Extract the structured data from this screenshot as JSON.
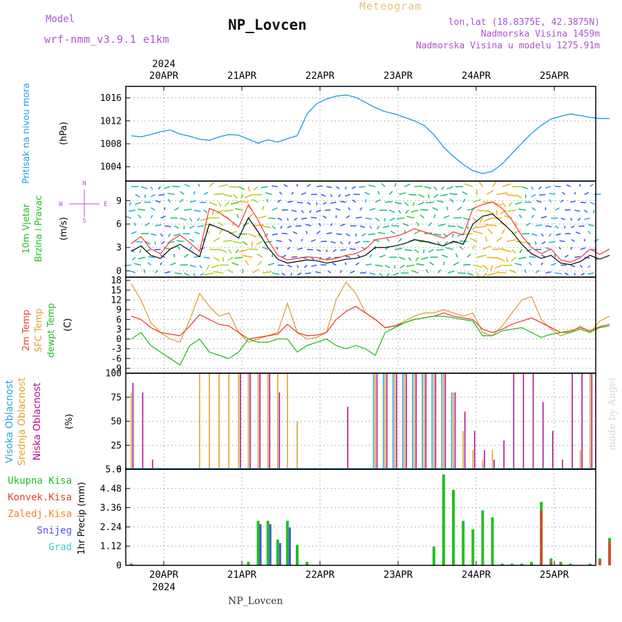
{
  "header": {
    "model_label": "Model",
    "model_name": "wrf-nmm_v3.9.1 e1km",
    "title": "NP_Lovcen",
    "meteogram": "Meteogram",
    "lonlat": "lon,lat (18.8375E, 42.3875N)",
    "elevation": "Nadmorska Visina 1459m",
    "elevation_model": "Nadmorska Visina u modelu 1275.91m",
    "footer": "NP_Lovcen",
    "credit": "made by Angel"
  },
  "colors": {
    "pressure": "#1ea0e6",
    "wind_speed": "#000000",
    "gust": "#ff3030",
    "t2m": "#e84030",
    "sfc": "#e0a030",
    "dew": "#20c020",
    "high_cloud": "#30a0e0",
    "mid_cloud": "#e0a030",
    "low_cloud": "#b01090",
    "total_precip": "#20c020",
    "conv_precip": "#e84030",
    "frz_precip": "#ff8020",
    "snow": "#5050e0",
    "grad": "#30d0d0"
  },
  "chart_data": [
    {
      "type": "line",
      "panel": "pressure",
      "ylabel": [
        "Pritisak na nivou mora",
        "(hPa)"
      ],
      "yticks": [
        1004,
        1008,
        1012,
        1016
      ],
      "ylim": [
        1001.5,
        1018
      ],
      "x_start": "2024-04-19 14:00",
      "x_step_hours": 3,
      "series": [
        {
          "values": [
            1009.4,
            1009.2,
            1009.6,
            1010.1,
            1010.4,
            1009.7,
            1009.3,
            1008.8,
            1008.6,
            1009.2,
            1009.6,
            1009.5,
            1008.8,
            1008.1,
            1008.7,
            1008.3,
            1008.9,
            1009.4,
            1013.2,
            1015.0,
            1015.8,
            1016.3,
            1016.5,
            1016.1,
            1015.2,
            1014.3,
            1013.6,
            1013.2,
            1012.6,
            1012.0,
            1011.2,
            1009.6,
            1007.4,
            1005.8,
            1004.4,
            1003.3,
            1002.8,
            1003.2,
            1004.5,
            1006.3,
            1008.1,
            1009.8,
            1011.2,
            1012.3,
            1012.8,
            1013.2,
            1012.9,
            1012.6,
            1012.4,
            1012.4
          ]
        }
      ]
    },
    {
      "type": "line",
      "panel": "wind",
      "ylabel": [
        "10m Vjetar",
        "Brzina i Pravac",
        "(m/s)"
      ],
      "compass": {
        "n": "N",
        "s": "S",
        "e": "E",
        "w": "W"
      },
      "yticks": [
        0,
        3,
        6,
        9
      ],
      "ylim": [
        -0.8,
        11.5
      ],
      "x_start": "2024-04-19 14:00",
      "x_step_hours": 3,
      "series": [
        {
          "name": "speed",
          "values": [
            2.5,
            3.2,
            2.0,
            1.6,
            2.8,
            3.4,
            2.6,
            1.8,
            6.0,
            5.5,
            5.0,
            4.2,
            6.8,
            5.0,
            3.0,
            1.5,
            1.0,
            1.2,
            1.4,
            1.3,
            1.0,
            1.2,
            1.5,
            1.6,
            2.0,
            3.0,
            3.0,
            3.2,
            3.5,
            4.0,
            3.8,
            3.5,
            3.2,
            3.8,
            3.4,
            6.0,
            7.0,
            7.3,
            6.2,
            5.0,
            3.4,
            2.2,
            1.6,
            2.0,
            1.0,
            0.8,
            1.2,
            2.0,
            1.5,
            2.0
          ]
        },
        {
          "name": "gust",
          "values": [
            3.5,
            4.4,
            2.8,
            2.2,
            3.8,
            4.6,
            3.6,
            2.5,
            8.0,
            7.5,
            6.6,
            5.6,
            8.5,
            6.5,
            4.0,
            2.0,
            1.4,
            1.6,
            1.8,
            1.7,
            1.4,
            1.6,
            2.0,
            2.2,
            2.8,
            4.0,
            4.2,
            4.4,
            4.8,
            5.4,
            5.0,
            4.6,
            4.2,
            5.0,
            4.6,
            8.0,
            8.5,
            8.8,
            8.0,
            6.5,
            4.5,
            3.0,
            2.2,
            2.8,
            1.4,
            1.1,
            1.7,
            2.8,
            2.1,
            2.8
          ]
        }
      ]
    },
    {
      "type": "line",
      "panel": "temperature",
      "ylabel": [
        "2m Temp",
        "SFC Temp",
        "dewpt Temp",
        "(C)"
      ],
      "yticks": [
        -9,
        -6,
        -3,
        0,
        3,
        6,
        9,
        12,
        15,
        18
      ],
      "ylim": [
        -10.5,
        19
      ],
      "x_start": "2024-04-19 14:00",
      "x_step_hours": 3,
      "series": [
        {
          "name": "2m Temp",
          "values": [
            7.0,
            6.0,
            3.5,
            2.0,
            1.5,
            1.0,
            4.0,
            7.5,
            6.0,
            4.5,
            4.0,
            2.0,
            0.0,
            0.5,
            1.0,
            1.5,
            4.5,
            2.0,
            1.0,
            1.2,
            2.0,
            6.0,
            8.5,
            10.0,
            8.0,
            6.0,
            3.5,
            4.0,
            5.0,
            6.0,
            6.5,
            7.0,
            8.0,
            7.0,
            6.5,
            6.0,
            3.0,
            2.0,
            3.0,
            4.5,
            5.5,
            6.5,
            5.0,
            3.5,
            2.0,
            2.5,
            3.5,
            2.5,
            3.8,
            4.5
          ]
        },
        {
          "name": "SFC Temp",
          "values": [
            17.0,
            12.0,
            5.0,
            2.0,
            0.0,
            -1.0,
            6.0,
            14.0,
            10.0,
            7.0,
            8.0,
            2.0,
            -1.0,
            0.0,
            1.0,
            2.0,
            11.0,
            2.0,
            0.0,
            0.5,
            2.0,
            12.0,
            17.5,
            14.0,
            8.0,
            6.0,
            3.5,
            4.0,
            5.5,
            7.0,
            8.0,
            8.0,
            9.0,
            8.0,
            7.0,
            8.0,
            2.0,
            1.0,
            4.0,
            8.0,
            12.0,
            13.0,
            6.0,
            3.0,
            1.0,
            2.0,
            4.0,
            2.0,
            5.5,
            7.0
          ]
        },
        {
          "name": "dewpt Temp",
          "values": [
            0.0,
            2.0,
            -2.0,
            -4.0,
            -6.0,
            -8.0,
            -2.0,
            0.0,
            -4.0,
            -5.0,
            -6.0,
            -4.0,
            0.0,
            -1.0,
            -1.0,
            0.0,
            0.0,
            -4.0,
            -2.0,
            -1.0,
            0.0,
            -2.0,
            -3.0,
            -2.0,
            -3.0,
            -5.0,
            2.0,
            3.5,
            5.0,
            6.0,
            6.5,
            7.0,
            7.0,
            6.5,
            6.0,
            5.5,
            1.0,
            1.0,
            2.5,
            3.0,
            3.5,
            2.0,
            0.5,
            1.5,
            2.0,
            2.0,
            3.0,
            2.0,
            3.5,
            4.0
          ]
        }
      ]
    },
    {
      "type": "bar",
      "panel": "cloud",
      "ylabel": [
        "Visoka Oblacnost",
        "Srednja Oblacnost",
        "Niska Oblacnost",
        "(%)"
      ],
      "yticks": [
        0,
        25,
        50,
        75,
        100
      ],
      "ylim": [
        0,
        100
      ],
      "x_start": "2024-04-19 14:00",
      "x_step_hours": 3,
      "series": [
        {
          "name": "Visoka Oblacnost",
          "values": [
            0,
            0,
            0,
            0,
            0,
            0,
            0,
            0,
            0,
            0,
            0,
            0,
            0,
            0,
            0,
            0,
            0,
            0,
            0,
            0,
            0,
            0,
            0,
            0,
            0,
            100,
            100,
            100,
            100,
            100,
            100,
            100,
            100,
            80,
            0,
            0,
            0,
            0,
            0,
            0,
            0,
            0,
            0,
            0,
            0,
            0,
            0,
            0,
            0,
            0
          ]
        },
        {
          "name": "Srednja Oblacnost",
          "values": [
            80,
            0,
            0,
            0,
            0,
            0,
            0,
            100,
            100,
            100,
            100,
            100,
            100,
            100,
            100,
            100,
            100,
            50,
            0,
            0,
            0,
            0,
            0,
            0,
            0,
            100,
            100,
            100,
            100,
            100,
            100,
            100,
            100,
            80,
            40,
            20,
            10,
            20,
            0,
            0,
            0,
            0,
            0,
            0,
            0,
            0,
            20,
            100,
            100,
            100
          ]
        },
        {
          "name": "Niska Oblacnost",
          "values": [
            90,
            80,
            10,
            0,
            0,
            0,
            0,
            0,
            0,
            0,
            0,
            100,
            100,
            100,
            100,
            80,
            0,
            0,
            0,
            0,
            0,
            0,
            65,
            0,
            0,
            100,
            100,
            100,
            100,
            100,
            100,
            100,
            100,
            80,
            60,
            40,
            20,
            10,
            30,
            100,
            100,
            100,
            70,
            40,
            10,
            100,
            100,
            100,
            80,
            0
          ]
        }
      ]
    },
    {
      "type": "bar",
      "panel": "precipitation",
      "ylabel": "1hr Precip (mm)",
      "legend": [
        "Ukupna Kisa",
        "Konvek.Kisa",
        "Zaledj.Kisa",
        "Snijeg",
        "Grad"
      ],
      "yticks": [
        0,
        1.12,
        2.24,
        3.36,
        4.48,
        5.6
      ],
      "ylim": [
        0,
        5.6
      ],
      "x_start": "2024-04-19 14:00",
      "x_step_hours": 3,
      "series": [
        {
          "name": "Ukupna Kisa",
          "values": [
            0.1,
            0,
            0,
            0,
            0,
            0,
            0,
            0,
            0,
            0,
            0,
            0,
            0.2,
            2.6,
            2.6,
            1.5,
            2.6,
            1.2,
            0.2,
            0,
            0,
            0,
            0,
            0,
            0,
            0,
            0,
            0,
            0,
            0,
            0,
            1.1,
            5.3,
            4.4,
            2.6,
            2.1,
            3.2,
            2.8,
            0.1,
            0.1,
            0.1,
            0.2,
            3.7,
            0.4,
            0.2,
            0.1,
            0,
            0.1,
            0.4,
            1.6
          ]
        },
        {
          "name": "Konvek.Kisa",
          "values": [
            0,
            0,
            0,
            0,
            0,
            0,
            0,
            0,
            0,
            0,
            0,
            0,
            0,
            0,
            0,
            0,
            0,
            0,
            0,
            0,
            0,
            0,
            0,
            0,
            0,
            0,
            0,
            0,
            0,
            0,
            0,
            0,
            0,
            0,
            0,
            0,
            0,
            0,
            0,
            0,
            0,
            0,
            3.2,
            0.2,
            0.1,
            0,
            0,
            0,
            0.3,
            1.4
          ]
        },
        {
          "name": "Snijeg",
          "values": [
            0,
            0,
            0,
            0,
            0,
            0,
            0,
            0,
            0,
            0,
            0,
            0,
            0,
            2.4,
            2.4,
            1.3,
            2.2,
            0,
            0,
            0,
            0,
            0,
            0,
            0,
            0,
            0,
            0,
            0,
            0,
            0,
            0,
            0,
            0,
            0,
            0,
            0,
            0,
            0,
            0,
            0,
            0,
            0,
            0,
            0,
            0,
            0,
            0,
            0,
            0,
            0
          ]
        }
      ]
    }
  ],
  "x_axis": {
    "top_year": "2024",
    "bottom_year": "2024",
    "days": [
      "20APR",
      "21APR",
      "22APR",
      "23APR",
      "24APR",
      "25APR"
    ]
  }
}
